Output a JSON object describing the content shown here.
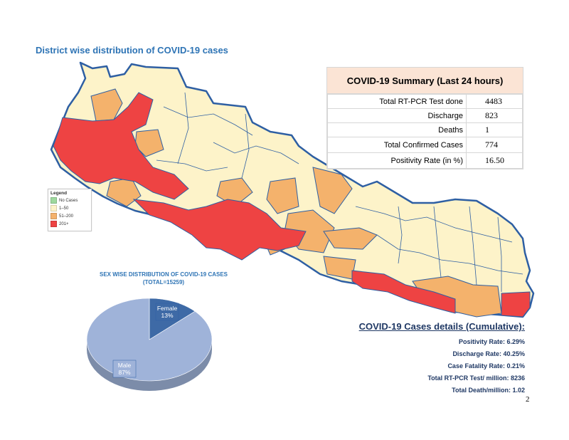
{
  "map": {
    "title": "District wise distribution of COVID-19 cases",
    "legend": {
      "title": "Legend",
      "items": [
        {
          "label": "No Cases",
          "color": "#9ed99e"
        },
        {
          "label": "1–50",
          "color": "#fdf3c9"
        },
        {
          "label": "51–200",
          "color": "#f4b26c"
        },
        {
          "label": "201+",
          "color": "#ee4343"
        }
      ]
    },
    "border_color": "#2e5fa3"
  },
  "summary": {
    "title": "COVID-19 Summary (Last 24 hours)",
    "rows": [
      {
        "label": "Total RT-PCR Test done",
        "value": "4483"
      },
      {
        "label": "Discharge",
        "value": "823"
      },
      {
        "label": "Deaths",
        "value": "1"
      },
      {
        "label": "Total Confirmed Cases",
        "value": "774"
      },
      {
        "label": "Positivity Rate (in %)",
        "value": "16.50"
      }
    ]
  },
  "chart_data": {
    "type": "pie",
    "title": "SEX WISE DISTRIBUTION OF COVID-19 CASES",
    "subtitle": "(TOTAL=15259)",
    "categories": [
      "Female",
      "Male"
    ],
    "values": [
      13,
      87
    ],
    "labels": [
      "13%",
      "87%"
    ],
    "colors": [
      "#3e6aa6",
      "#9fb3d9"
    ]
  },
  "cumulative": {
    "title": "COVID-19 Cases details (Cumulative):",
    "items": [
      "Positivity Rate: 6.29%",
      "Discharge Rate: 40.25%",
      "Case Fatality Rate: 0.21%",
      "Total RT-PCR Test/ million: 8236",
      "Total Death/million: 1.02"
    ]
  },
  "page_number": "2"
}
